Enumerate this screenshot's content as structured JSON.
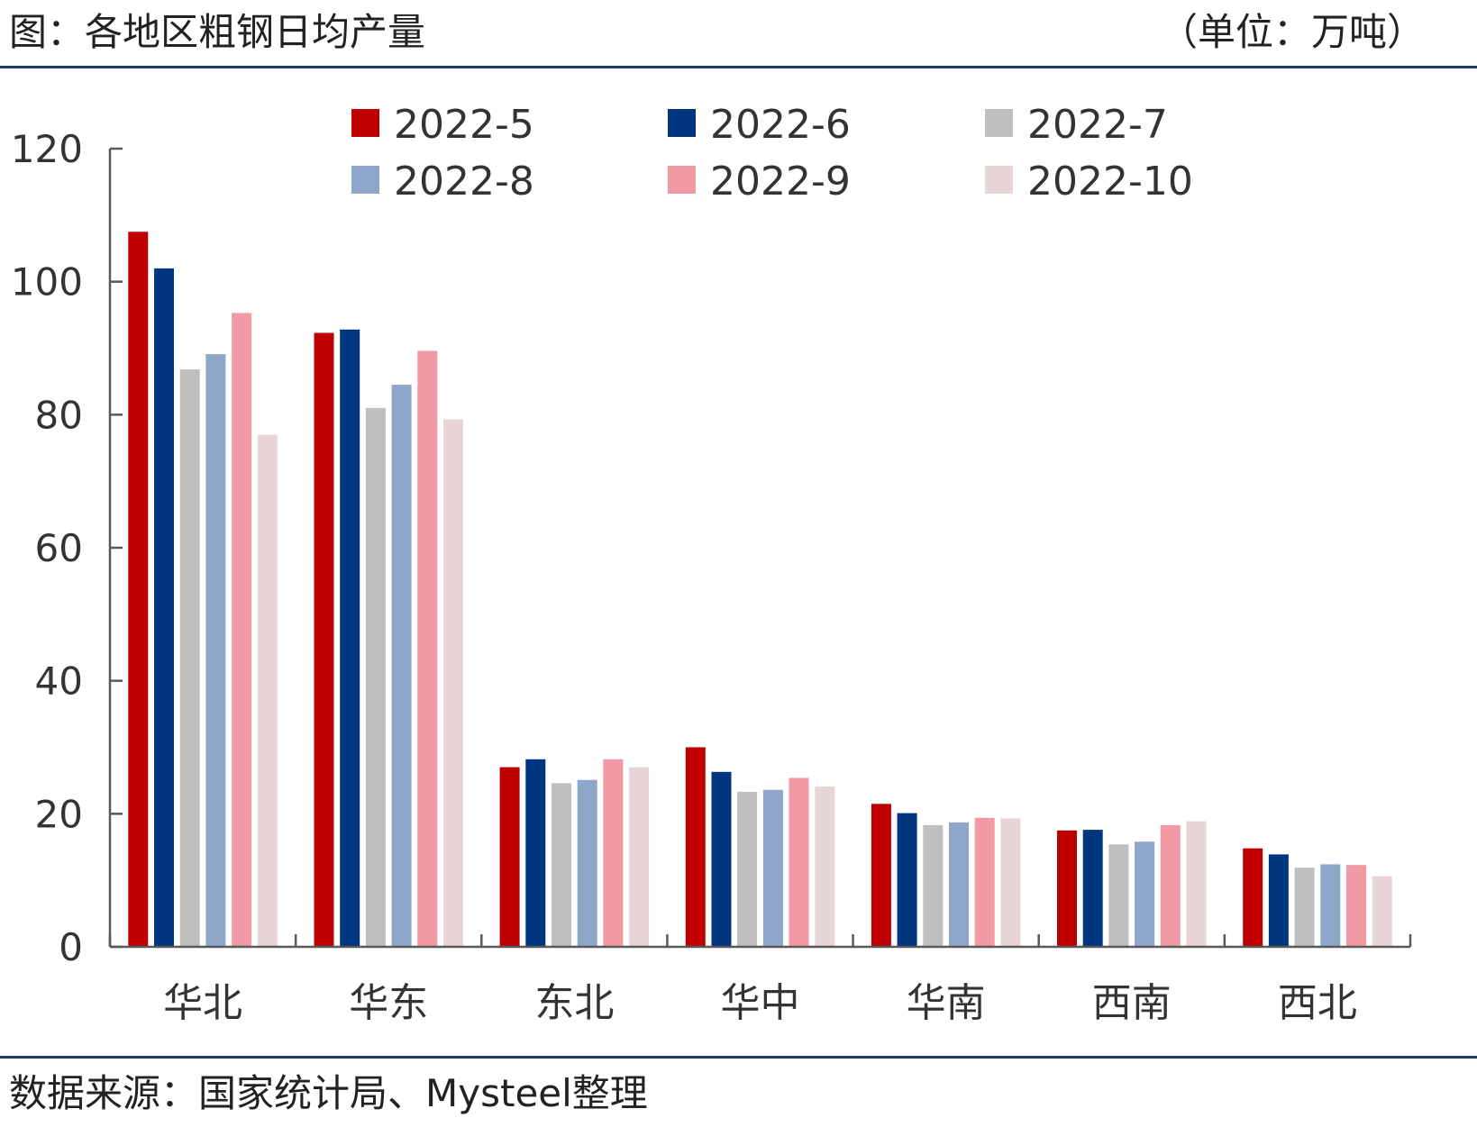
{
  "header": {
    "title": "图：各地区粗钢日均产量",
    "unit": "（单位：万吨）"
  },
  "footer": {
    "source": "数据来源：国家统计局、Mysteel整理"
  },
  "colors": {
    "rule": "#1f3a6e",
    "axis": "#595959",
    "text": "#333333"
  },
  "chart_data": {
    "type": "bar",
    "title": "",
    "xlabel": "",
    "ylabel": "",
    "ylim": [
      0,
      120
    ],
    "yticks": [
      "0",
      "20",
      "40",
      "60",
      "80",
      "100",
      "120"
    ],
    "grid": false,
    "legend_position": "top",
    "categories": [
      "华北",
      "华东",
      "东北",
      "华中",
      "华南",
      "西南",
      "西北"
    ],
    "series": [
      {
        "name": "2022-5",
        "color": "#c00000",
        "values": [
          107.5,
          92.3,
          27.0,
          30.0,
          21.5,
          17.5,
          14.8
        ]
      },
      {
        "name": "2022-6",
        "color": "#003580",
        "values": [
          102.0,
          92.8,
          28.2,
          26.3,
          20.1,
          17.6,
          13.9
        ]
      },
      {
        "name": "2022-7",
        "color": "#bfbfbf",
        "values": [
          86.8,
          81.0,
          24.6,
          23.3,
          18.3,
          15.4,
          11.9
        ]
      },
      {
        "name": "2022-8",
        "color": "#8ea6c9",
        "values": [
          89.1,
          84.5,
          25.1,
          23.6,
          18.7,
          15.8,
          12.4
        ]
      },
      {
        "name": "2022-9",
        "color": "#f19aa5",
        "values": [
          95.3,
          89.6,
          28.2,
          25.4,
          19.4,
          18.3,
          12.3
        ]
      },
      {
        "name": "2022-10",
        "color": "#e8d5d7",
        "values": [
          77.0,
          79.3,
          27.0,
          24.1,
          19.3,
          18.9,
          10.6
        ]
      }
    ]
  }
}
